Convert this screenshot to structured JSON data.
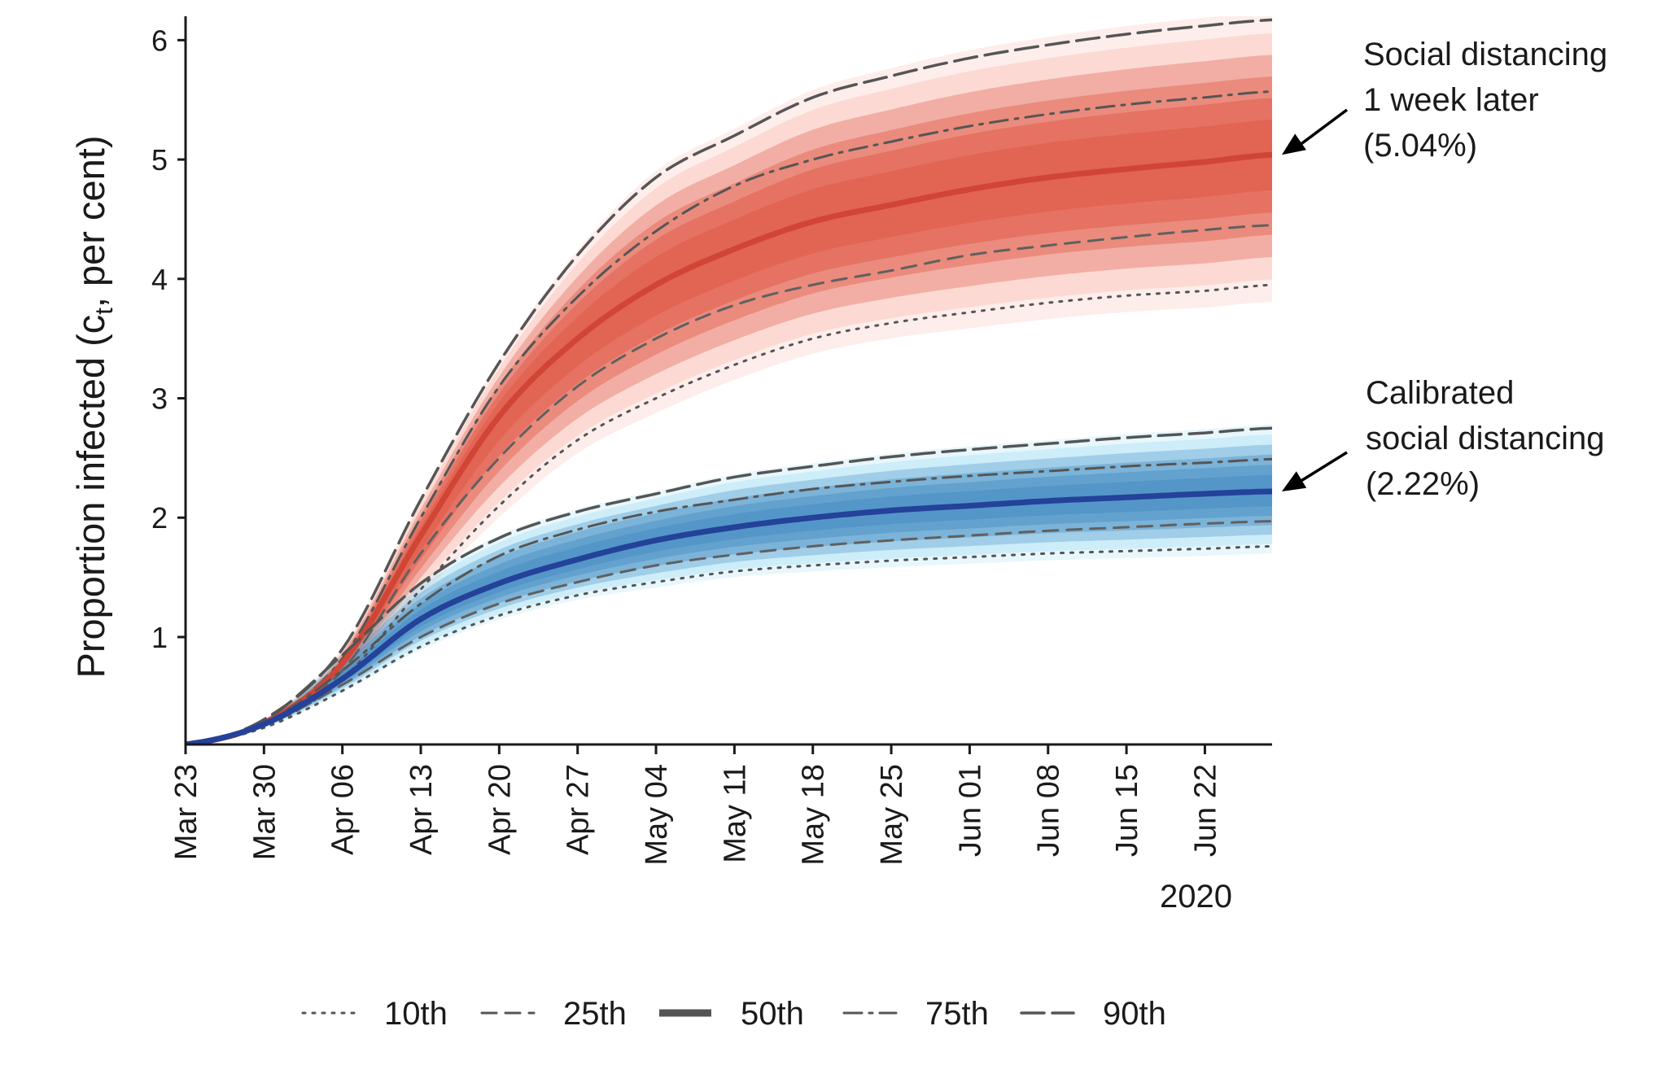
{
  "chart_data": {
    "type": "area",
    "title": "",
    "ylabel_main": "Proportion infected (c",
    "ylabel_sub": "t",
    "ylabel_tail": ", per cent)",
    "xlabel": "",
    "x_year_label": "2020",
    "ylim": [
      0.1,
      6.2
    ],
    "y_ticks": [
      1,
      2,
      3,
      4,
      5,
      6
    ],
    "y_tick_labels": [
      "1",
      "2",
      "3",
      "4",
      "5",
      "6"
    ],
    "x_range_days": [
      0,
      97
    ],
    "x_ticks": [
      0,
      7,
      14,
      21,
      28,
      35,
      42,
      49,
      56,
      63,
      70,
      77,
      84,
      91
    ],
    "x_tick_labels": [
      "Mar 23",
      "Mar 30",
      "Apr 06",
      "Apr 13",
      "Apr 20",
      "Apr 27",
      "May 04",
      "May 11",
      "May 18",
      "May 25",
      "Jun 01",
      "Jun 08",
      "Jun 15",
      "Jun 22"
    ],
    "x_days": [
      0,
      7,
      14,
      21,
      28,
      35,
      42,
      49,
      56,
      63,
      70,
      77,
      84,
      91,
      97
    ],
    "scenarios": [
      {
        "name": "Social distancing 1 week later",
        "annotation_lines": [
          "Social distancing",
          "1 week later",
          "(5.04%)"
        ],
        "band_color": "#e05a48",
        "median_color": "#d04535",
        "percentiles": {
          "p10": [
            0.1,
            0.25,
            0.65,
            1.4,
            2.1,
            2.65,
            3.0,
            3.28,
            3.5,
            3.63,
            3.72,
            3.8,
            3.86,
            3.9,
            3.95
          ],
          "p25": [
            0.1,
            0.27,
            0.72,
            1.7,
            2.5,
            3.1,
            3.5,
            3.78,
            3.95,
            4.07,
            4.2,
            4.28,
            4.35,
            4.41,
            4.45
          ],
          "p50": [
            0.1,
            0.28,
            0.78,
            1.85,
            2.85,
            3.5,
            3.95,
            4.25,
            4.48,
            4.62,
            4.75,
            4.85,
            4.92,
            4.98,
            5.04
          ],
          "p75": [
            0.1,
            0.29,
            0.82,
            2.0,
            3.1,
            3.85,
            4.4,
            4.78,
            5.0,
            5.15,
            5.28,
            5.38,
            5.46,
            5.52,
            5.57
          ],
          "p90": [
            0.1,
            0.31,
            0.9,
            2.15,
            3.3,
            4.2,
            4.85,
            5.2,
            5.52,
            5.7,
            5.85,
            5.96,
            6.05,
            6.12,
            6.17
          ]
        }
      },
      {
        "name": "Calibrated social distancing",
        "annotation_lines": [
          "Calibrated",
          "social distancing",
          "(2.22%)"
        ],
        "band_color": "#4a8fc4",
        "median_color": "#24429a",
        "percentiles": {
          "p10": [
            0.1,
            0.24,
            0.55,
            0.92,
            1.18,
            1.35,
            1.46,
            1.55,
            1.6,
            1.64,
            1.67,
            1.7,
            1.72,
            1.74,
            1.76
          ],
          "p25": [
            0.1,
            0.26,
            0.6,
            1.0,
            1.28,
            1.46,
            1.6,
            1.69,
            1.76,
            1.81,
            1.85,
            1.89,
            1.92,
            1.95,
            1.97
          ],
          "p50": [
            0.1,
            0.27,
            0.65,
            1.15,
            1.45,
            1.65,
            1.81,
            1.92,
            2.0,
            2.06,
            2.1,
            2.14,
            2.17,
            2.2,
            2.22
          ],
          "p75": [
            0.1,
            0.28,
            0.72,
            1.28,
            1.68,
            1.9,
            2.05,
            2.15,
            2.24,
            2.3,
            2.35,
            2.39,
            2.43,
            2.46,
            2.49
          ],
          "p90": [
            0.1,
            0.3,
            0.85,
            1.45,
            1.83,
            2.05,
            2.2,
            2.34,
            2.43,
            2.51,
            2.57,
            2.62,
            2.67,
            2.71,
            2.75
          ]
        }
      }
    ],
    "legend": {
      "position": "bottom",
      "entries": [
        {
          "label": "10th",
          "style": "dotted"
        },
        {
          "label": "25th",
          "style": "dashed"
        },
        {
          "label": "50th",
          "style": "solid-thick"
        },
        {
          "label": "75th",
          "style": "dotdash"
        },
        {
          "label": "90th",
          "style": "longdash"
        }
      ]
    }
  }
}
